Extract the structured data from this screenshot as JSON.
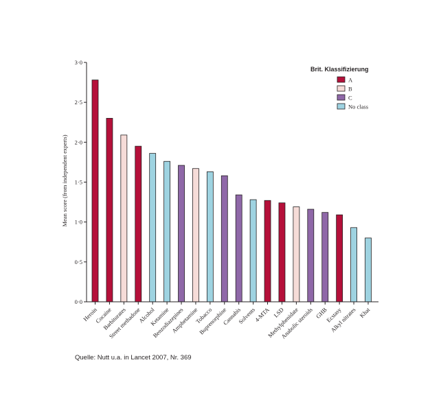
{
  "chart_data": {
    "type": "bar",
    "ylabel": "Mean score (from independent experts)",
    "ylim": [
      0,
      3
    ],
    "yticks": [
      0,
      0.5,
      1,
      1.5,
      2,
      2.5,
      3
    ],
    "ytick_labels": [
      "0·0",
      "0·5",
      "1·0",
      "1·5",
      "2·0",
      "2·5",
      "3·0"
    ],
    "categories": [
      "Heroin",
      "Cocaine",
      "Barbiturates",
      "Street methadone",
      "Alcohol",
      "Ketamine",
      "Benzodiazepines",
      "Amphetamine",
      "Tobacco",
      "Buprenorphine",
      "Cannabis",
      "Solvents",
      "4-MTA",
      "LSD",
      "Methylphenidate",
      "Anabolic steroids",
      "GHB",
      "Ecstasy",
      "Alkyl nitrates",
      "Khat"
    ],
    "values": [
      2.78,
      2.3,
      2.09,
      1.95,
      1.86,
      1.76,
      1.71,
      1.67,
      1.63,
      1.58,
      1.34,
      1.28,
      1.27,
      1.24,
      1.19,
      1.16,
      1.12,
      1.09,
      0.93,
      0.8
    ],
    "classes": [
      "A",
      "A",
      "B",
      "A",
      "none",
      "none",
      "C",
      "B",
      "none",
      "C",
      "C",
      "none",
      "A",
      "A",
      "B",
      "C",
      "C",
      "A",
      "none",
      "none"
    ],
    "legend": {
      "title": "Brit. Klassifizierung",
      "position": "top-right",
      "entries": [
        {
          "key": "A",
          "label": "A",
          "color": "#b5103a"
        },
        {
          "key": "B",
          "label": "B",
          "color": "#f6dcd8"
        },
        {
          "key": "C",
          "label": "C",
          "color": "#8f68a8"
        },
        {
          "key": "none",
          "label": "No class",
          "color": "#9ed3e1"
        }
      ]
    },
    "grid": false
  },
  "source": "Quelle: Nutt u.a. in Lancet 2007, Nr. 369"
}
